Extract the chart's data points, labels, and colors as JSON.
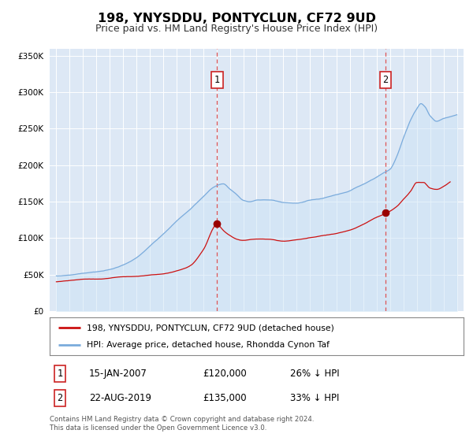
{
  "title": "198, YNYSDDU, PONTYCLUN, CF72 9UD",
  "subtitle": "Price paid vs. HM Land Registry's House Price Index (HPI)",
  "title_fontsize": 11.5,
  "subtitle_fontsize": 9,
  "plot_bg_color": "#dde8f5",
  "hpi_color": "#7aabdc",
  "hpi_fill_color": "#c5dcf0",
  "paid_color": "#cc1111",
  "marker1_x": 2007.04,
  "marker1_y": 120000,
  "marker2_x": 2019.65,
  "marker2_y": 135000,
  "vline_color": "#dd4444",
  "ylim": [
    0,
    360000
  ],
  "yticks": [
    0,
    50000,
    100000,
    150000,
    200000,
    250000,
    300000,
    350000
  ],
  "xlim": [
    1994.5,
    2025.5
  ],
  "xticks": [
    1995,
    1996,
    1997,
    1998,
    1999,
    2000,
    2001,
    2002,
    2003,
    2004,
    2005,
    2006,
    2007,
    2008,
    2009,
    2010,
    2011,
    2012,
    2013,
    2014,
    2015,
    2016,
    2017,
    2018,
    2019,
    2020,
    2021,
    2022,
    2023,
    2024,
    2025
  ],
  "legend_label_paid": "198, YNYSDDU, PONTYCLUN, CF72 9UD (detached house)",
  "legend_label_hpi": "HPI: Average price, detached house, Rhondda Cynon Taf",
  "note1_num": "1",
  "note1_date": "15-JAN-2007",
  "note1_price": "£120,000",
  "note1_pct": "26% ↓ HPI",
  "note2_num": "2",
  "note2_date": "22-AUG-2019",
  "note2_price": "£135,000",
  "note2_pct": "33% ↓ HPI",
  "footer": "Contains HM Land Registry data © Crown copyright and database right 2024.\nThis data is licensed under the Open Government Licence v3.0.",
  "grid_color": "#ffffff",
  "box_edge_color": "#cc2222"
}
